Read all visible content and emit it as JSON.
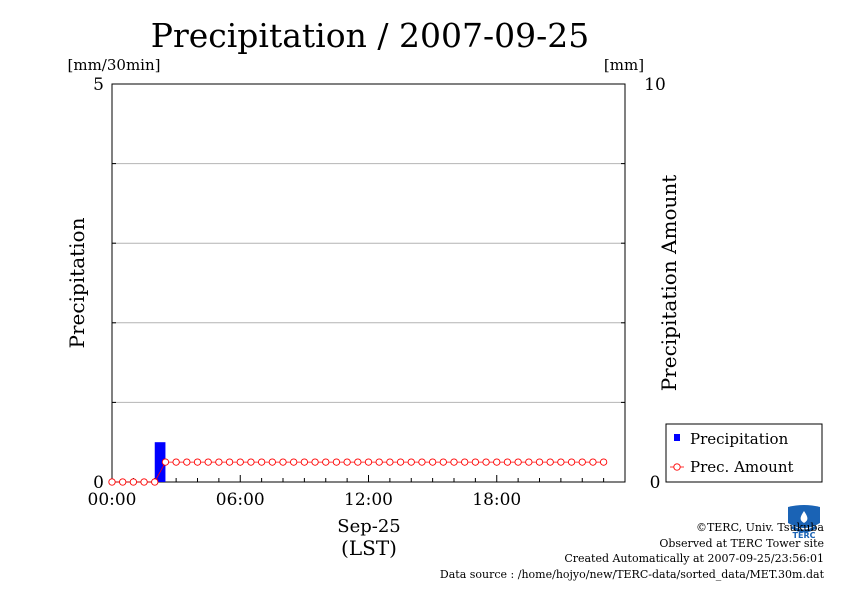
{
  "chart_data": {
    "type": "bar",
    "title": "Precipitation / 2007-09-25",
    "ylabel": "Precipitation",
    "ylabel_unit": "[mm/30min]",
    "ylim": [
      0,
      5
    ],
    "y_ticks": [
      "5",
      "0"
    ],
    "y2label": "Precipitation Amount",
    "y2label_unit": "[mm]",
    "y2lim": [
      0,
      10
    ],
    "y2_ticks": [
      "10",
      "0"
    ],
    "x_ticks": [
      "00:00",
      "06:00",
      "12:00",
      "18:00"
    ],
    "x_tick_hours": [
      0,
      6,
      12,
      18
    ],
    "xlim_hours": [
      0,
      24
    ],
    "x_date": "Sep-25",
    "x_unit": "(LST)",
    "grid": true,
    "legend_position": "lower-right outside",
    "series": [
      {
        "name": "Precipitation",
        "kind": "bar",
        "axis": "left",
        "color": "#0000ff",
        "start_hours": [
          2.0
        ],
        "values": [
          0.5
        ]
      },
      {
        "name": "Prec. Amount",
        "kind": "line",
        "axis": "right",
        "color": "#ff0000",
        "marker": "open-circle",
        "start_hour": 0,
        "step_hours": 0.5,
        "values": [
          0,
          0,
          0,
          0,
          0,
          0.5,
          0.5,
          0.5,
          0.5,
          0.5,
          0.5,
          0.5,
          0.5,
          0.5,
          0.5,
          0.5,
          0.5,
          0.5,
          0.5,
          0.5,
          0.5,
          0.5,
          0.5,
          0.5,
          0.5,
          0.5,
          0.5,
          0.5,
          0.5,
          0.5,
          0.5,
          0.5,
          0.5,
          0.5,
          0.5,
          0.5,
          0.5,
          0.5,
          0.5,
          0.5,
          0.5,
          0.5,
          0.5,
          0.5,
          0.5,
          0.5,
          0.5
        ]
      }
    ]
  },
  "credits": {
    "copyright": "©TERC, Univ. Tsukuba",
    "observed": "Observed at TERC Tower site",
    "created": "Created Automatically at 2007-09-25/23:56:01",
    "source": "Data source : /home/hojyo/new/TERC-data/sorted_data/MET.30m.dat"
  },
  "logo": {
    "text": "TERC",
    "color": "#1a63b5"
  }
}
